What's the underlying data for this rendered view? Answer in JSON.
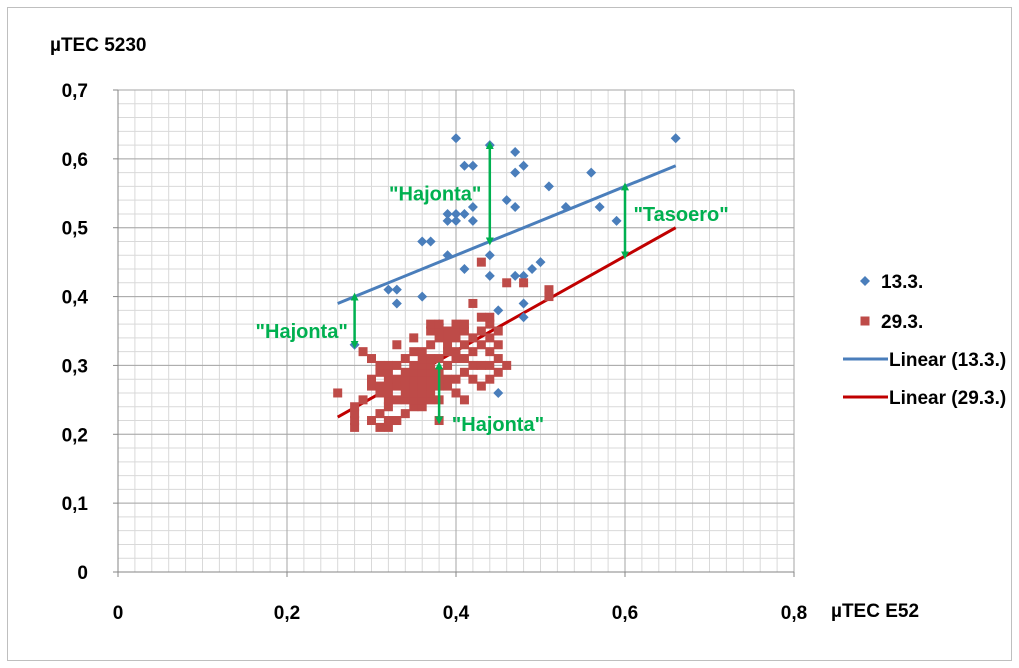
{
  "chart_data": {
    "type": "scatter",
    "ylabel": "µTEC 5230",
    "xlabel": "µTEC E52",
    "xlim": [
      0,
      0.8
    ],
    "ylim": [
      0,
      0.7
    ],
    "x_ticks": [
      "0",
      "0,2",
      "0,4",
      "0,6",
      "0,8"
    ],
    "y_ticks": [
      "0",
      "0,1",
      "0,2",
      "0,3",
      "0,4",
      "0,5",
      "0,6",
      "0,7"
    ],
    "grid": true,
    "legend_position": "right",
    "series": [
      {
        "name": "13.3.",
        "marker": "diamond",
        "color": "#4a7ebb",
        "points": [
          [
            0.28,
            0.33
          ],
          [
            0.32,
            0.41
          ],
          [
            0.33,
            0.41
          ],
          [
            0.33,
            0.39
          ],
          [
            0.36,
            0.4
          ],
          [
            0.36,
            0.48
          ],
          [
            0.37,
            0.48
          ],
          [
            0.38,
            0.36
          ],
          [
            0.39,
            0.46
          ],
          [
            0.39,
            0.51
          ],
          [
            0.39,
            0.52
          ],
          [
            0.4,
            0.51
          ],
          [
            0.4,
            0.52
          ],
          [
            0.4,
            0.63
          ],
          [
            0.41,
            0.52
          ],
          [
            0.41,
            0.59
          ],
          [
            0.41,
            0.44
          ],
          [
            0.42,
            0.51
          ],
          [
            0.42,
            0.53
          ],
          [
            0.42,
            0.59
          ],
          [
            0.44,
            0.43
          ],
          [
            0.44,
            0.46
          ],
          [
            0.44,
            0.62
          ],
          [
            0.45,
            0.26
          ],
          [
            0.45,
            0.38
          ],
          [
            0.46,
            0.54
          ],
          [
            0.47,
            0.43
          ],
          [
            0.47,
            0.53
          ],
          [
            0.47,
            0.58
          ],
          [
            0.47,
            0.61
          ],
          [
            0.48,
            0.37
          ],
          [
            0.48,
            0.39
          ],
          [
            0.48,
            0.43
          ],
          [
            0.48,
            0.59
          ],
          [
            0.49,
            0.44
          ],
          [
            0.5,
            0.45
          ],
          [
            0.51,
            0.56
          ],
          [
            0.53,
            0.53
          ],
          [
            0.56,
            0.58
          ],
          [
            0.57,
            0.53
          ],
          [
            0.59,
            0.51
          ],
          [
            0.66,
            0.63
          ]
        ]
      },
      {
        "name": "29.3.",
        "marker": "square",
        "color": "#be4b48",
        "points": [
          [
            0.26,
            0.26
          ],
          [
            0.28,
            0.21
          ],
          [
            0.28,
            0.22
          ],
          [
            0.28,
            0.23
          ],
          [
            0.28,
            0.24
          ],
          [
            0.29,
            0.25
          ],
          [
            0.29,
            0.32
          ],
          [
            0.3,
            0.22
          ],
          [
            0.3,
            0.27
          ],
          [
            0.3,
            0.28
          ],
          [
            0.3,
            0.31
          ],
          [
            0.31,
            0.21
          ],
          [
            0.31,
            0.23
          ],
          [
            0.31,
            0.26
          ],
          [
            0.31,
            0.27
          ],
          [
            0.31,
            0.29
          ],
          [
            0.31,
            0.3
          ],
          [
            0.32,
            0.21
          ],
          [
            0.32,
            0.22
          ],
          [
            0.32,
            0.24
          ],
          [
            0.32,
            0.25
          ],
          [
            0.32,
            0.26
          ],
          [
            0.32,
            0.27
          ],
          [
            0.32,
            0.28
          ],
          [
            0.32,
            0.29
          ],
          [
            0.32,
            0.3
          ],
          [
            0.33,
            0.22
          ],
          [
            0.33,
            0.25
          ],
          [
            0.33,
            0.27
          ],
          [
            0.33,
            0.28
          ],
          [
            0.33,
            0.3
          ],
          [
            0.33,
            0.33
          ],
          [
            0.34,
            0.23
          ],
          [
            0.34,
            0.25
          ],
          [
            0.34,
            0.26
          ],
          [
            0.34,
            0.27
          ],
          [
            0.34,
            0.28
          ],
          [
            0.34,
            0.29
          ],
          [
            0.34,
            0.31
          ],
          [
            0.35,
            0.24
          ],
          [
            0.35,
            0.25
          ],
          [
            0.35,
            0.26
          ],
          [
            0.35,
            0.27
          ],
          [
            0.35,
            0.28
          ],
          [
            0.35,
            0.29
          ],
          [
            0.35,
            0.3
          ],
          [
            0.35,
            0.32
          ],
          [
            0.35,
            0.34
          ],
          [
            0.36,
            0.24
          ],
          [
            0.36,
            0.25
          ],
          [
            0.36,
            0.26
          ],
          [
            0.36,
            0.27
          ],
          [
            0.36,
            0.28
          ],
          [
            0.36,
            0.29
          ],
          [
            0.36,
            0.3
          ],
          [
            0.36,
            0.31
          ],
          [
            0.36,
            0.32
          ],
          [
            0.37,
            0.25
          ],
          [
            0.37,
            0.26
          ],
          [
            0.37,
            0.27
          ],
          [
            0.37,
            0.28
          ],
          [
            0.37,
            0.29
          ],
          [
            0.37,
            0.3
          ],
          [
            0.37,
            0.31
          ],
          [
            0.37,
            0.33
          ],
          [
            0.37,
            0.35
          ],
          [
            0.37,
            0.36
          ],
          [
            0.38,
            0.22
          ],
          [
            0.38,
            0.25
          ],
          [
            0.38,
            0.27
          ],
          [
            0.38,
            0.28
          ],
          [
            0.38,
            0.29
          ],
          [
            0.38,
            0.31
          ],
          [
            0.38,
            0.34
          ],
          [
            0.38,
            0.35
          ],
          [
            0.38,
            0.36
          ],
          [
            0.39,
            0.27
          ],
          [
            0.39,
            0.28
          ],
          [
            0.39,
            0.3
          ],
          [
            0.39,
            0.32
          ],
          [
            0.39,
            0.33
          ],
          [
            0.39,
            0.34
          ],
          [
            0.39,
            0.35
          ],
          [
            0.4,
            0.26
          ],
          [
            0.4,
            0.28
          ],
          [
            0.4,
            0.31
          ],
          [
            0.4,
            0.32
          ],
          [
            0.4,
            0.34
          ],
          [
            0.4,
            0.35
          ],
          [
            0.4,
            0.36
          ],
          [
            0.41,
            0.25
          ],
          [
            0.41,
            0.29
          ],
          [
            0.41,
            0.31
          ],
          [
            0.41,
            0.33
          ],
          [
            0.41,
            0.35
          ],
          [
            0.41,
            0.36
          ],
          [
            0.42,
            0.28
          ],
          [
            0.42,
            0.3
          ],
          [
            0.42,
            0.32
          ],
          [
            0.42,
            0.34
          ],
          [
            0.42,
            0.39
          ],
          [
            0.43,
            0.27
          ],
          [
            0.43,
            0.3
          ],
          [
            0.43,
            0.33
          ],
          [
            0.43,
            0.35
          ],
          [
            0.43,
            0.37
          ],
          [
            0.43,
            0.45
          ],
          [
            0.44,
            0.28
          ],
          [
            0.44,
            0.3
          ],
          [
            0.44,
            0.32
          ],
          [
            0.44,
            0.34
          ],
          [
            0.44,
            0.36
          ],
          [
            0.44,
            0.37
          ],
          [
            0.45,
            0.29
          ],
          [
            0.45,
            0.31
          ],
          [
            0.45,
            0.33
          ],
          [
            0.45,
            0.35
          ],
          [
            0.46,
            0.3
          ],
          [
            0.46,
            0.42
          ],
          [
            0.48,
            0.42
          ],
          [
            0.51,
            0.4
          ],
          [
            0.51,
            0.41
          ]
        ]
      },
      {
        "name": "Linear (13.3.)",
        "type": "line",
        "color": "#4a7ebb",
        "points": [
          [
            0.26,
            0.39
          ],
          [
            0.66,
            0.59
          ]
        ]
      },
      {
        "name": "Linear (29.3.)",
        "type": "line",
        "color": "#c00000",
        "points": [
          [
            0.26,
            0.225
          ],
          [
            0.66,
            0.5
          ]
        ]
      }
    ],
    "annotations": [
      {
        "text": "\"Hajonta\"",
        "color": "#00b050",
        "x": 0.43,
        "y": 0.55,
        "anchor": "end",
        "arrow": [
          [
            0.44,
            0.48
          ],
          [
            0.44,
            0.62
          ]
        ]
      },
      {
        "text": "\"Tasoero\"",
        "color": "#00b050",
        "x": 0.61,
        "y": 0.52,
        "anchor": "start",
        "arrow": [
          [
            0.6,
            0.46
          ],
          [
            0.6,
            0.56
          ]
        ]
      },
      {
        "text": "\"Hajonta\"",
        "color": "#00b050",
        "x": 0.272,
        "y": 0.35,
        "anchor": "end",
        "arrow": [
          [
            0.28,
            0.33
          ],
          [
            0.28,
            0.4
          ]
        ]
      },
      {
        "text": "\"Hajonta\"",
        "color": "#00b050",
        "x": 0.395,
        "y": 0.215,
        "anchor": "start",
        "arrow": [
          [
            0.38,
            0.22
          ],
          [
            0.38,
            0.3
          ]
        ]
      }
    ]
  }
}
